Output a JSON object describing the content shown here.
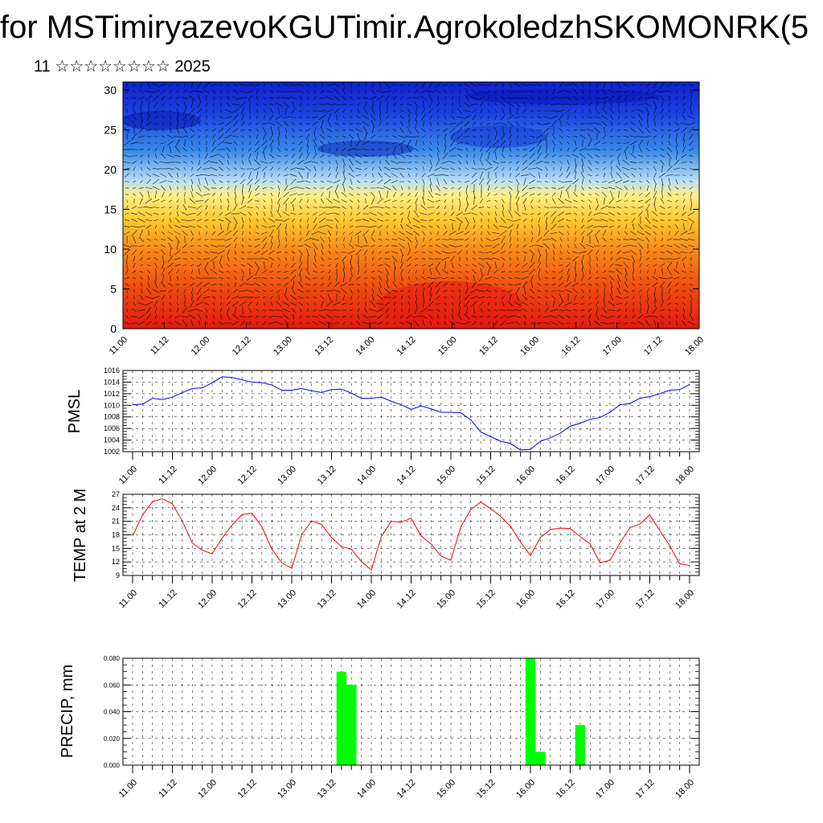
{
  "header": {
    "title": "for MSTimiryazevoKGUTimir.AgrokoledzhSKOMONRK(5",
    "subtitle": "11 ☆☆☆☆☆☆☆☆ 2025"
  },
  "colors": {
    "pmsl_line": "#0000ff",
    "temp_line": "#ff0000",
    "precip_bar": "#00ff00",
    "cross_section_top": "#1020c8",
    "cross_section_bottom": "#e82010"
  },
  "chart_data": [
    {
      "type": "heatmap",
      "description_keys": "wind cross-section",
      "xlabel": "",
      "ylabel": "",
      "x_ticks": [
        "11.00",
        "11.12",
        "12.00",
        "12.12",
        "13.00",
        "13.12",
        "14.00",
        "14.12",
        "15.00",
        "15.12",
        "16.00",
        "16.12",
        "17.00",
        "17.12",
        "18.00"
      ],
      "y_ticks": [
        "0",
        "5",
        "10",
        "15",
        "20",
        "25",
        "30"
      ],
      "ylim": [
        0,
        31
      ],
      "color_scale": "red (low levels) to yellow to light blue to blue (upper levels)"
    },
    {
      "type": "line",
      "ylabel": "PMSL",
      "x_ticks": [
        "11.00",
        "11.12",
        "12.00",
        "12.12",
        "13.00",
        "13.12",
        "14.00",
        "14.12",
        "15.00",
        "15.12",
        "16.00",
        "16.12",
        "17.00",
        "17.12",
        "18.00"
      ],
      "y_ticks": [
        "1002",
        "1004",
        "1006",
        "1008",
        "1010",
        "1012",
        "1014",
        "1016"
      ],
      "ylim": [
        1002,
        1016
      ],
      "grid": true,
      "series": [
        {
          "values": [
            1010.1,
            1010.2,
            1011.2,
            1011.0,
            1011.4,
            1012.2,
            1012.9,
            1013.0,
            1013.9,
            1014.9,
            1014.8,
            1014.4,
            1014.0,
            1013.9,
            1013.5,
            1012.6,
            1012.6,
            1012.9,
            1012.5,
            1012.2,
            1012.7,
            1012.8,
            1012.1,
            1011.2,
            1011.2,
            1011.4,
            1010.7,
            1010.1,
            1009.3,
            1009.9,
            1009.4,
            1008.8,
            1008.8,
            1008.7,
            1007.5,
            1005.4,
            1004.6,
            1003.8,
            1003.4,
            1002.3,
            1002.4,
            1003.8,
            1004.4,
            1005.2,
            1006.4,
            1006.9,
            1007.6,
            1007.9,
            1008.8,
            1010.1,
            1010.3,
            1011.2,
            1011.5,
            1012.0,
            1012.6,
            1012.7,
            1013.6
          ]
        }
      ]
    },
    {
      "type": "line",
      "ylabel": "TEMP at 2 M",
      "x_ticks": [
        "11.00",
        "11.12",
        "12.00",
        "12.12",
        "13.00",
        "13.12",
        "14.00",
        "14.12",
        "15.00",
        "15.12",
        "16.00",
        "16.12",
        "17.00",
        "17.12",
        "18.00"
      ],
      "y_ticks": [
        "9",
        "12",
        "15",
        "18",
        "21",
        "24",
        "27"
      ],
      "ylim": [
        9,
        27
      ],
      "grid": true,
      "series": [
        {
          "values": [
            17.8,
            22.4,
            25.4,
            26.0,
            24.9,
            21.0,
            16.2,
            14.6,
            13.8,
            17.3,
            20.2,
            22.5,
            22.8,
            19.8,
            14.8,
            11.8,
            10.6,
            18.0,
            21.1,
            20.3,
            17.4,
            15.4,
            14.8,
            12.1,
            10.2,
            17.6,
            21.0,
            20.8,
            21.7,
            17.8,
            16.0,
            13.3,
            12.4,
            19.8,
            23.6,
            25.3,
            23.8,
            22.1,
            19.9,
            16.4,
            13.4,
            17.4,
            19.2,
            19.5,
            19.4,
            17.6,
            16.0,
            11.8,
            12.4,
            16.2,
            19.6,
            20.4,
            22.4,
            19.0,
            15.6,
            11.6,
            11.2
          ]
        }
      ]
    },
    {
      "type": "bar",
      "ylabel": "PRECIP, mm",
      "x_ticks": [
        "11.00",
        "11.12",
        "12.00",
        "12.12",
        "13.00",
        "13.12",
        "14.00",
        "14.12",
        "15.00",
        "15.12",
        "16.00",
        "16.12",
        "17.00",
        "17.12",
        "18.00"
      ],
      "y_ticks": [
        "0.000",
        "0.020",
        "0.040",
        "0.060",
        "0.080"
      ],
      "ylim": [
        0,
        0.08
      ],
      "grid": true,
      "bar_index_start": 21,
      "values_by_step": {
        "21": 0.07,
        "22": 0.06,
        "40": 0.08,
        "41": 0.01,
        "45": 0.03
      }
    }
  ]
}
